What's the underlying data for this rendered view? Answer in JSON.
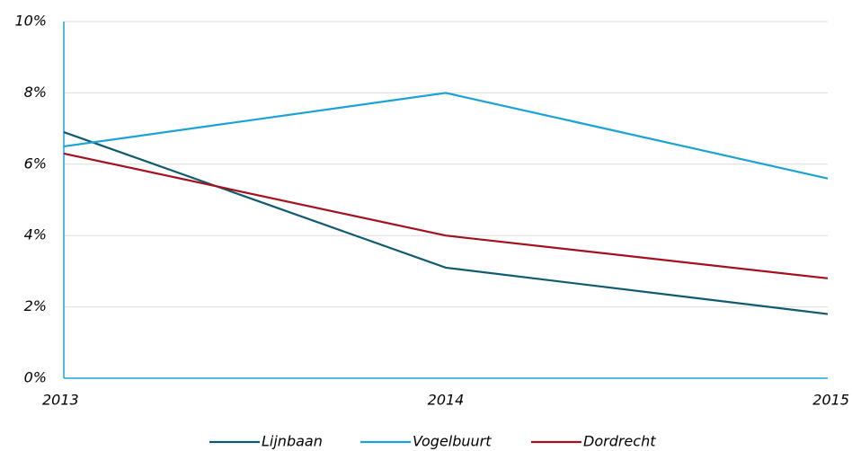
{
  "chart_data": {
    "type": "line",
    "categories": [
      "2013",
      "2014",
      "2015"
    ],
    "series": [
      {
        "name": "Lijnbaan",
        "color": "#0e5b70",
        "values": [
          6.9,
          3.1,
          1.8
        ]
      },
      {
        "name": "Vogelbuurt",
        "color": "#1ba3d6",
        "values": [
          6.5,
          8.0,
          5.6
        ]
      },
      {
        "name": "Dordrecht",
        "color": "#a3111f",
        "values": [
          6.3,
          4.0,
          2.8
        ]
      }
    ],
    "ylim": [
      0,
      10
    ],
    "yticks": [
      {
        "value": 0,
        "label": "0%"
      },
      {
        "value": 2,
        "label": "2%"
      },
      {
        "value": 4,
        "label": "4%"
      },
      {
        "value": 6,
        "label": "6%"
      },
      {
        "value": 8,
        "label": "8%"
      },
      {
        "value": 10,
        "label": "10%"
      }
    ],
    "grid": true,
    "legend": "bottom"
  }
}
